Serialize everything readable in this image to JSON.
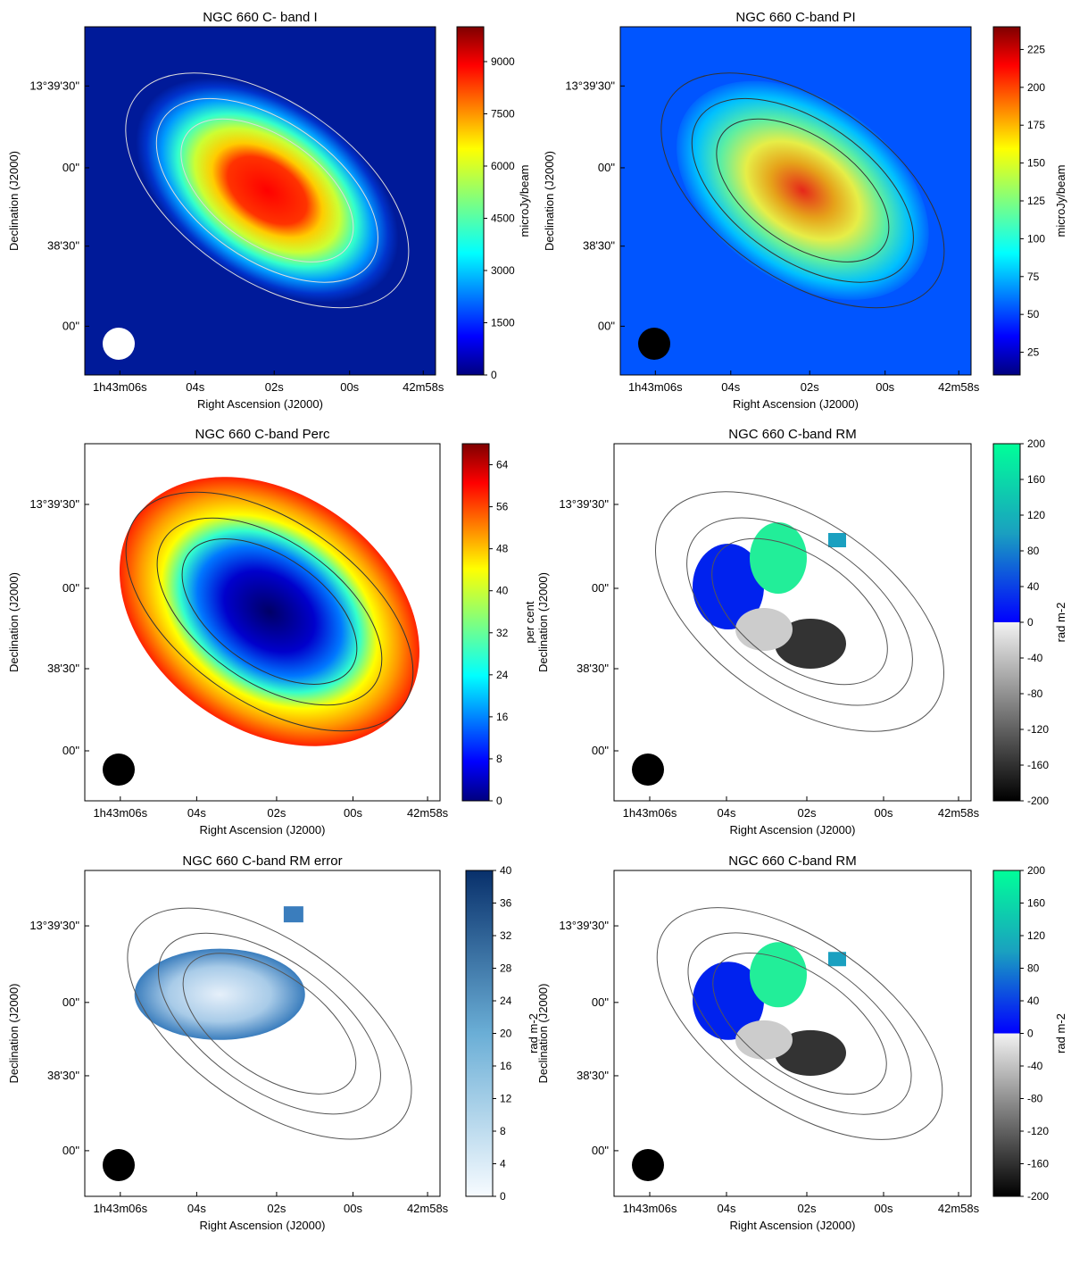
{
  "chart_data": [
    {
      "type": "heatmap",
      "title": "NGC 660   C- band   I",
      "xlabel": "Right Ascension (J2000)",
      "ylabel": "Declination (J2000)",
      "x_ticks": [
        "1h43m06s",
        "04s",
        "02s",
        "00s",
        "42m58s"
      ],
      "y_ticks": [
        "13°39'30\"",
        "00\"",
        "38'30\"",
        "00\""
      ],
      "colorbar": {
        "label": "microJy/beam",
        "range": [
          0,
          10000
        ],
        "ticks": [
          0,
          1500,
          3000,
          4500,
          6000,
          7500,
          9000
        ],
        "colormap": "jet"
      },
      "overlays": [
        "white contours",
        "polarization vectors",
        "beam"
      ]
    },
    {
      "type": "heatmap",
      "title": "NGC 660   C-band   PI",
      "xlabel": "Right Ascension (J2000)",
      "ylabel": "Declination (J2000)",
      "x_ticks": [
        "1h43m06s",
        "04s",
        "02s",
        "00s",
        "42m58s"
      ],
      "y_ticks": [
        "13°39'30\"",
        "00\"",
        "38'30\"",
        "00\""
      ],
      "colorbar": {
        "label": "microJy/beam",
        "range": [
          10,
          240
        ],
        "ticks": [
          25,
          50,
          75,
          100,
          125,
          150,
          175,
          200,
          225
        ],
        "colormap": "jet"
      },
      "overlays": [
        "black contours",
        "polarization vectors",
        "beam"
      ]
    },
    {
      "type": "heatmap",
      "title": "NGC 660   C-band   Perc",
      "xlabel": "Right Ascension (J2000)",
      "ylabel": "Declination (J2000)",
      "x_ticks": [
        "1h43m06s",
        "04s",
        "02s",
        "00s",
        "42m58s"
      ],
      "y_ticks": [
        "13°39'30\"",
        "00\"",
        "38'30\"",
        "00\""
      ],
      "colorbar": {
        "label": "per cent",
        "range": [
          0,
          68
        ],
        "ticks": [
          0,
          8,
          16,
          24,
          32,
          40,
          48,
          56,
          64
        ],
        "colormap": "jet"
      },
      "overlays": [
        "black contours",
        "beam"
      ]
    },
    {
      "type": "heatmap",
      "title": "NGC 660   C-band   RM",
      "xlabel": "Right Ascension (J2000)",
      "ylabel": "Declination (J2000)",
      "x_ticks": [
        "1h43m06s",
        "04s",
        "02s",
        "00s",
        "42m58s"
      ],
      "y_ticks": [
        "13°39'30\"",
        "00\"",
        "38'30\"",
        "00\""
      ],
      "colorbar": {
        "label": "rad m-2",
        "range": [
          -200,
          200
        ],
        "ticks": [
          -200,
          -160,
          -120,
          -80,
          -40,
          0,
          40,
          80,
          120,
          160,
          200
        ],
        "colormap": "gray-blue-green"
      },
      "overlays": [
        "black contours",
        "beam"
      ]
    },
    {
      "type": "heatmap",
      "title": "NGC 660   C-band   RM error",
      "xlabel": "Right Ascension (J2000)",
      "ylabel": "Declination (J2000)",
      "x_ticks": [
        "1h43m06s",
        "04s",
        "02s",
        "00s",
        "42m58s"
      ],
      "y_ticks": [
        "13°39'30\"",
        "00\"",
        "38'30\"",
        "00\""
      ],
      "colorbar": {
        "label": "rad m-2",
        "range": [
          0,
          40
        ],
        "ticks": [
          0,
          4,
          8,
          12,
          16,
          20,
          24,
          28,
          32,
          36,
          40
        ],
        "colormap": "blues"
      },
      "overlays": [
        "black contours",
        "beam"
      ]
    },
    {
      "type": "heatmap",
      "title": "NGC 660   C-band   RM",
      "xlabel": "Right Ascension (J2000)",
      "ylabel": "Declination (J2000)",
      "x_ticks": [
        "1h43m06s",
        "04s",
        "02s",
        "00s",
        "42m58s"
      ],
      "y_ticks": [
        "13°39'30\"",
        "00\"",
        "38'30\"",
        "00\""
      ],
      "colorbar": {
        "label": "rad m-2",
        "range": [
          -200,
          200
        ],
        "ticks": [
          -200,
          -160,
          -120,
          -80,
          -40,
          0,
          40,
          80,
          120,
          160,
          200
        ],
        "colormap": "gray-blue-green"
      },
      "overlays": [
        "black contours",
        "rotated vectors",
        "beam"
      ]
    }
  ]
}
